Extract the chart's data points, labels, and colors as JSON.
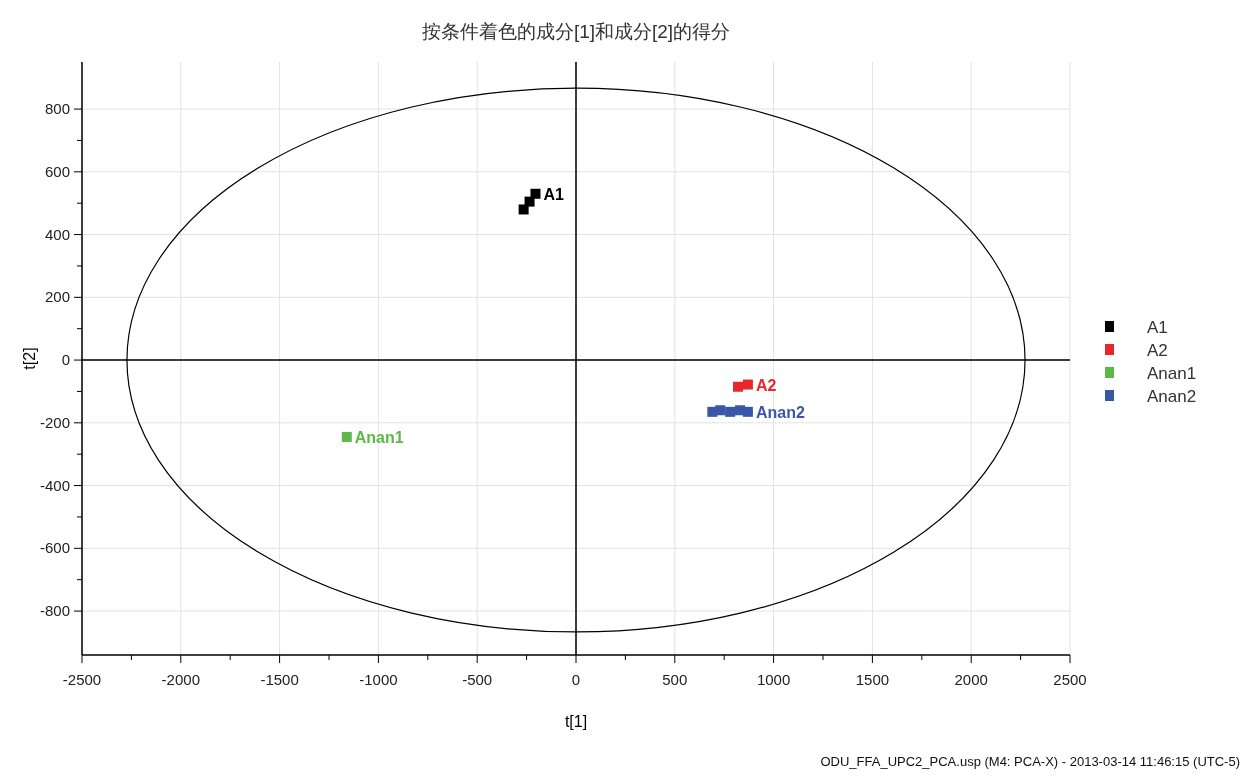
{
  "chart_data": {
    "type": "scatter",
    "title": "按条件着色的成分[1]和成分[2]的得分",
    "xlabel": "t[1]",
    "ylabel": "t[2]",
    "xlim": [
      -2500,
      2500
    ],
    "ylim": [
      -940,
      950
    ],
    "xticks": [
      -2500,
      -2000,
      -1500,
      -1000,
      -500,
      0,
      500,
      1000,
      1500,
      2000,
      2500
    ],
    "yticks": [
      -800,
      -600,
      -400,
      -200,
      0,
      200,
      400,
      600,
      800
    ],
    "grid": true,
    "legend": "right",
    "marker": "square",
    "series": [
      {
        "name": "A1",
        "color": "#000000",
        "x": [
          -265,
          -235,
          -205
        ],
        "values": [
          480,
          505,
          530
        ],
        "value_labels": [
          null,
          null,
          "A1"
        ]
      },
      {
        "name": "A2",
        "color": "#e8262b",
        "x": [
          820,
          870
        ],
        "values": [
          -85,
          -78
        ],
        "value_labels": [
          null,
          "A2"
        ]
      },
      {
        "name": "Anan1",
        "color": "#5cb947",
        "x": [
          -1160
        ],
        "values": [
          -245
        ],
        "value_labels": [
          "Anan1"
        ]
      },
      {
        "name": "Anan2",
        "color": "#3a56a6",
        "x": [
          690,
          730,
          780,
          830,
          870
        ],
        "values": [
          -165,
          -160,
          -165,
          -160,
          -165
        ],
        "value_labels": [
          null,
          null,
          null,
          null,
          "Anan2"
        ]
      }
    ],
    "annotations": [
      "ODU_FFA_UPC2_PCA.usp (M4: PCA-X) - 2013-03-14 11:46:15 (UTC-5)"
    ]
  }
}
